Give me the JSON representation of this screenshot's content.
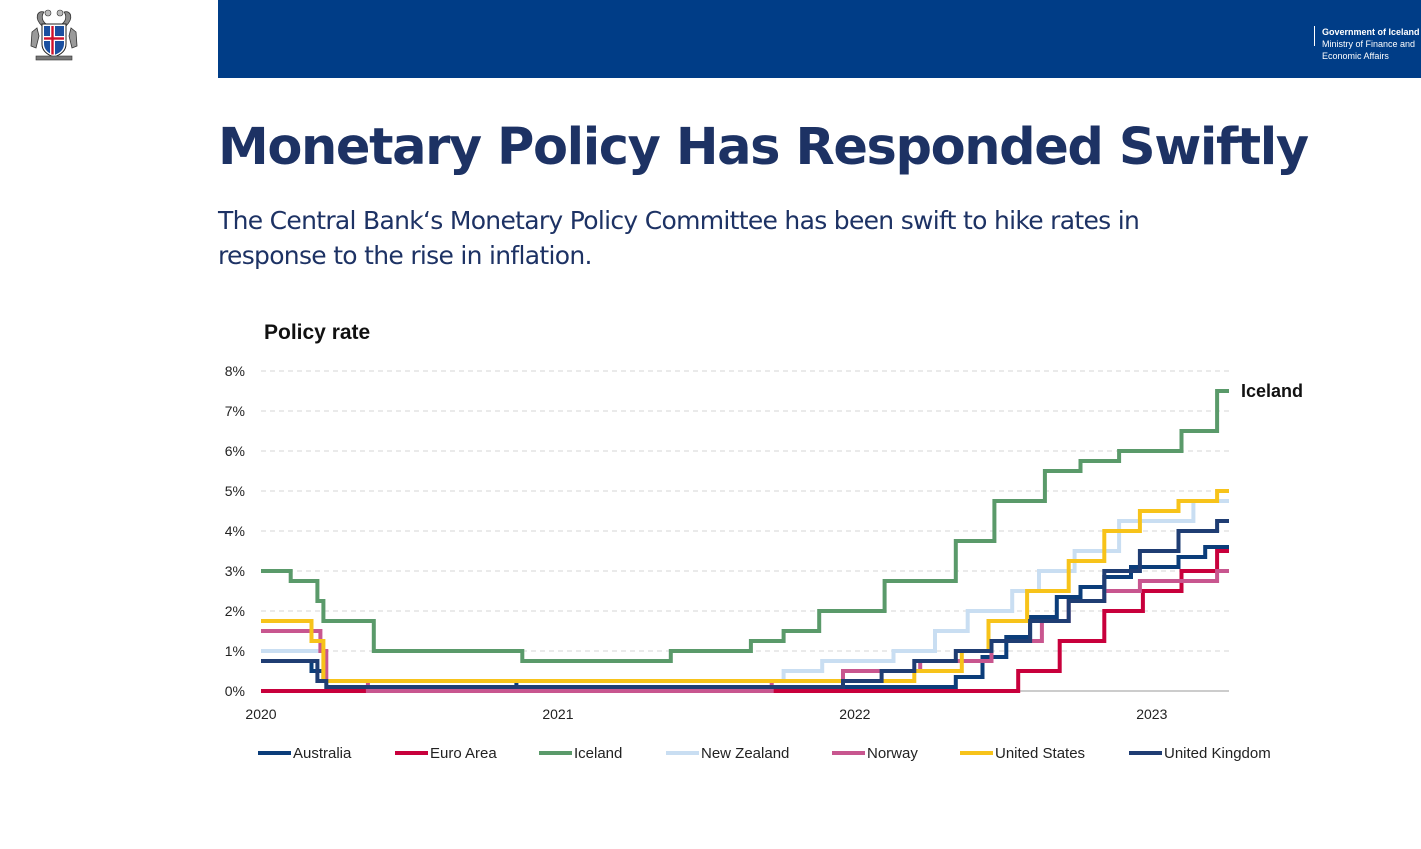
{
  "header": {
    "gov_line1": "Government of Iceland",
    "gov_line2": "Ministry of Finance and Economic Affairs",
    "band_color": "#003d87",
    "logo": "iceland-coat-of-arms"
  },
  "slide": {
    "title": "Monetary Policy Has Responded Swiftly",
    "subtitle": "The Central Bank‘s Monetary Policy Committee has been swift to hike rates in response to the rise in inflation."
  },
  "chart_data": {
    "type": "line",
    "step": true,
    "title": "Policy rate",
    "xlabel": "",
    "ylabel": "",
    "x_ticks": [
      "2020",
      "2021",
      "2022",
      "2023"
    ],
    "xlim": [
      2020.0,
      2023.26
    ],
    "ylim": [
      0,
      8
    ],
    "y_ticks": [
      "0%",
      "1%",
      "2%",
      "3%",
      "4%",
      "5%",
      "6%",
      "7%",
      "8%"
    ],
    "grid": "horizontal-dashed",
    "legend": "bottom",
    "end_label": "Iceland",
    "series": [
      {
        "name": "Australia",
        "color": "#0b3d7a",
        "points": [
          [
            2020.0,
            0.75
          ],
          [
            2020.17,
            0.5
          ],
          [
            2020.21,
            0.25
          ],
          [
            2020.86,
            0.1
          ],
          [
            2022.34,
            0.35
          ],
          [
            2022.43,
            0.85
          ],
          [
            2022.51,
            1.35
          ],
          [
            2022.59,
            1.85
          ],
          [
            2022.68,
            2.35
          ],
          [
            2022.76,
            2.6
          ],
          [
            2022.84,
            2.85
          ],
          [
            2022.93,
            3.1
          ],
          [
            2023.09,
            3.35
          ],
          [
            2023.18,
            3.6
          ],
          [
            2023.26,
            3.6
          ]
        ]
      },
      {
        "name": "Euro Area",
        "color": "#c8003c",
        "points": [
          [
            2020.0,
            0.0
          ],
          [
            2022.55,
            0.5
          ],
          [
            2022.69,
            1.25
          ],
          [
            2022.84,
            2.0
          ],
          [
            2022.97,
            2.5
          ],
          [
            2023.1,
            3.0
          ],
          [
            2023.22,
            3.5
          ],
          [
            2023.26,
            3.5
          ]
        ]
      },
      {
        "name": "Iceland",
        "color": "#5a9a6a",
        "points": [
          [
            2020.0,
            3.0
          ],
          [
            2020.1,
            2.75
          ],
          [
            2020.19,
            2.25
          ],
          [
            2020.21,
            1.75
          ],
          [
            2020.38,
            1.0
          ],
          [
            2020.88,
            0.75
          ],
          [
            2021.38,
            1.0
          ],
          [
            2021.65,
            1.25
          ],
          [
            2021.76,
            1.5
          ],
          [
            2021.88,
            2.0
          ],
          [
            2022.1,
            2.75
          ],
          [
            2022.34,
            3.75
          ],
          [
            2022.47,
            4.75
          ],
          [
            2022.64,
            5.5
          ],
          [
            2022.76,
            5.75
          ],
          [
            2022.89,
            6.0
          ],
          [
            2023.1,
            6.5
          ],
          [
            2023.22,
            7.5
          ],
          [
            2023.26,
            7.5
          ]
        ]
      },
      {
        "name": "New Zealand",
        "color": "#c9def2",
        "points": [
          [
            2020.0,
            1.0
          ],
          [
            2020.21,
            0.25
          ],
          [
            2021.76,
            0.5
          ],
          [
            2021.89,
            0.75
          ],
          [
            2022.13,
            1.0
          ],
          [
            2022.27,
            1.5
          ],
          [
            2022.38,
            2.0
          ],
          [
            2022.53,
            2.5
          ],
          [
            2022.62,
            3.0
          ],
          [
            2022.74,
            3.5
          ],
          [
            2022.89,
            4.25
          ],
          [
            2023.14,
            4.75
          ],
          [
            2023.26,
            4.75
          ]
        ]
      },
      {
        "name": "Norway",
        "color": "#c8568f",
        "points": [
          [
            2020.0,
            1.5
          ],
          [
            2020.2,
            1.0
          ],
          [
            2020.22,
            0.25
          ],
          [
            2020.36,
            0.0
          ],
          [
            2021.72,
            0.25
          ],
          [
            2021.96,
            0.5
          ],
          [
            2022.22,
            0.75
          ],
          [
            2022.46,
            1.25
          ],
          [
            2022.63,
            1.75
          ],
          [
            2022.72,
            2.25
          ],
          [
            2022.84,
            2.5
          ],
          [
            2022.96,
            2.75
          ],
          [
            2023.22,
            3.0
          ],
          [
            2023.26,
            3.0
          ]
        ]
      },
      {
        "name": "United States",
        "color": "#f7c31a",
        "points": [
          [
            2020.0,
            1.75
          ],
          [
            2020.17,
            1.25
          ],
          [
            2020.21,
            0.25
          ],
          [
            2022.2,
            0.5
          ],
          [
            2022.36,
            1.0
          ],
          [
            2022.45,
            1.75
          ],
          [
            2022.58,
            2.5
          ],
          [
            2022.72,
            3.25
          ],
          [
            2022.84,
            4.0
          ],
          [
            2022.96,
            4.5
          ],
          [
            2023.09,
            4.75
          ],
          [
            2023.22,
            5.0
          ],
          [
            2023.26,
            5.0
          ]
        ]
      },
      {
        "name": "United Kingdom",
        "color": "#1f3d73",
        "points": [
          [
            2020.0,
            0.75
          ],
          [
            2020.19,
            0.25
          ],
          [
            2020.22,
            0.1
          ],
          [
            2021.96,
            0.25
          ],
          [
            2022.09,
            0.5
          ],
          [
            2022.2,
            0.75
          ],
          [
            2022.34,
            1.0
          ],
          [
            2022.46,
            1.25
          ],
          [
            2022.59,
            1.75
          ],
          [
            2022.72,
            2.25
          ],
          [
            2022.84,
            3.0
          ],
          [
            2022.96,
            3.5
          ],
          [
            2023.09,
            4.0
          ],
          [
            2023.22,
            4.25
          ],
          [
            2023.26,
            4.25
          ]
        ]
      }
    ]
  }
}
